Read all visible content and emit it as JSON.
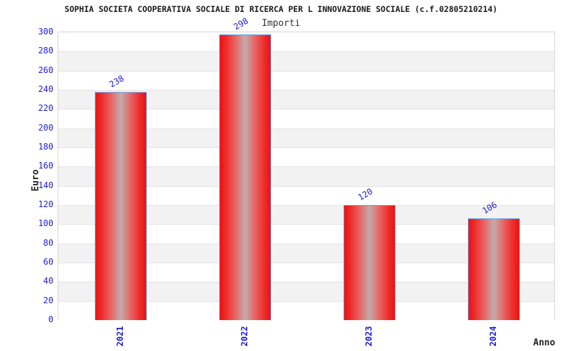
{
  "chart_data": {
    "type": "bar",
    "title": "SOPHIA SOCIETA COOPERATIVA SOCIALE DI RICERCA PER L INNOVAZIONE SOCIALE (c.f.02805210214)",
    "subtitle": "Importi",
    "xlabel": "Anno",
    "ylabel": "Euro",
    "categories": [
      "2021",
      "2022",
      "2023",
      "2024"
    ],
    "values": [
      238,
      298,
      120,
      106
    ],
    "value_labels": [
      "238",
      "298",
      "120",
      "106"
    ],
    "ytick_labels": [
      "0",
      "20",
      "40",
      "60",
      "80",
      "100",
      "120",
      "140",
      "160",
      "180",
      "200",
      "220",
      "240",
      "260",
      "280",
      "300"
    ],
    "ylim": [
      0,
      300
    ],
    "ytick_step": 20,
    "grid": true,
    "legend_position": "none",
    "colors": {
      "bar_red": "#ec1212",
      "bar_highlight": "#c3abab",
      "bar_border": "#6fa3e8",
      "tick_label_blue": "#1c1cd6",
      "band_alt": "#f2f2f2",
      "band_main": "#ffffff",
      "gridline": "#e3e3e3",
      "plot_border": "#d5d5d5",
      "title_color": "#1a1a1a"
    }
  }
}
